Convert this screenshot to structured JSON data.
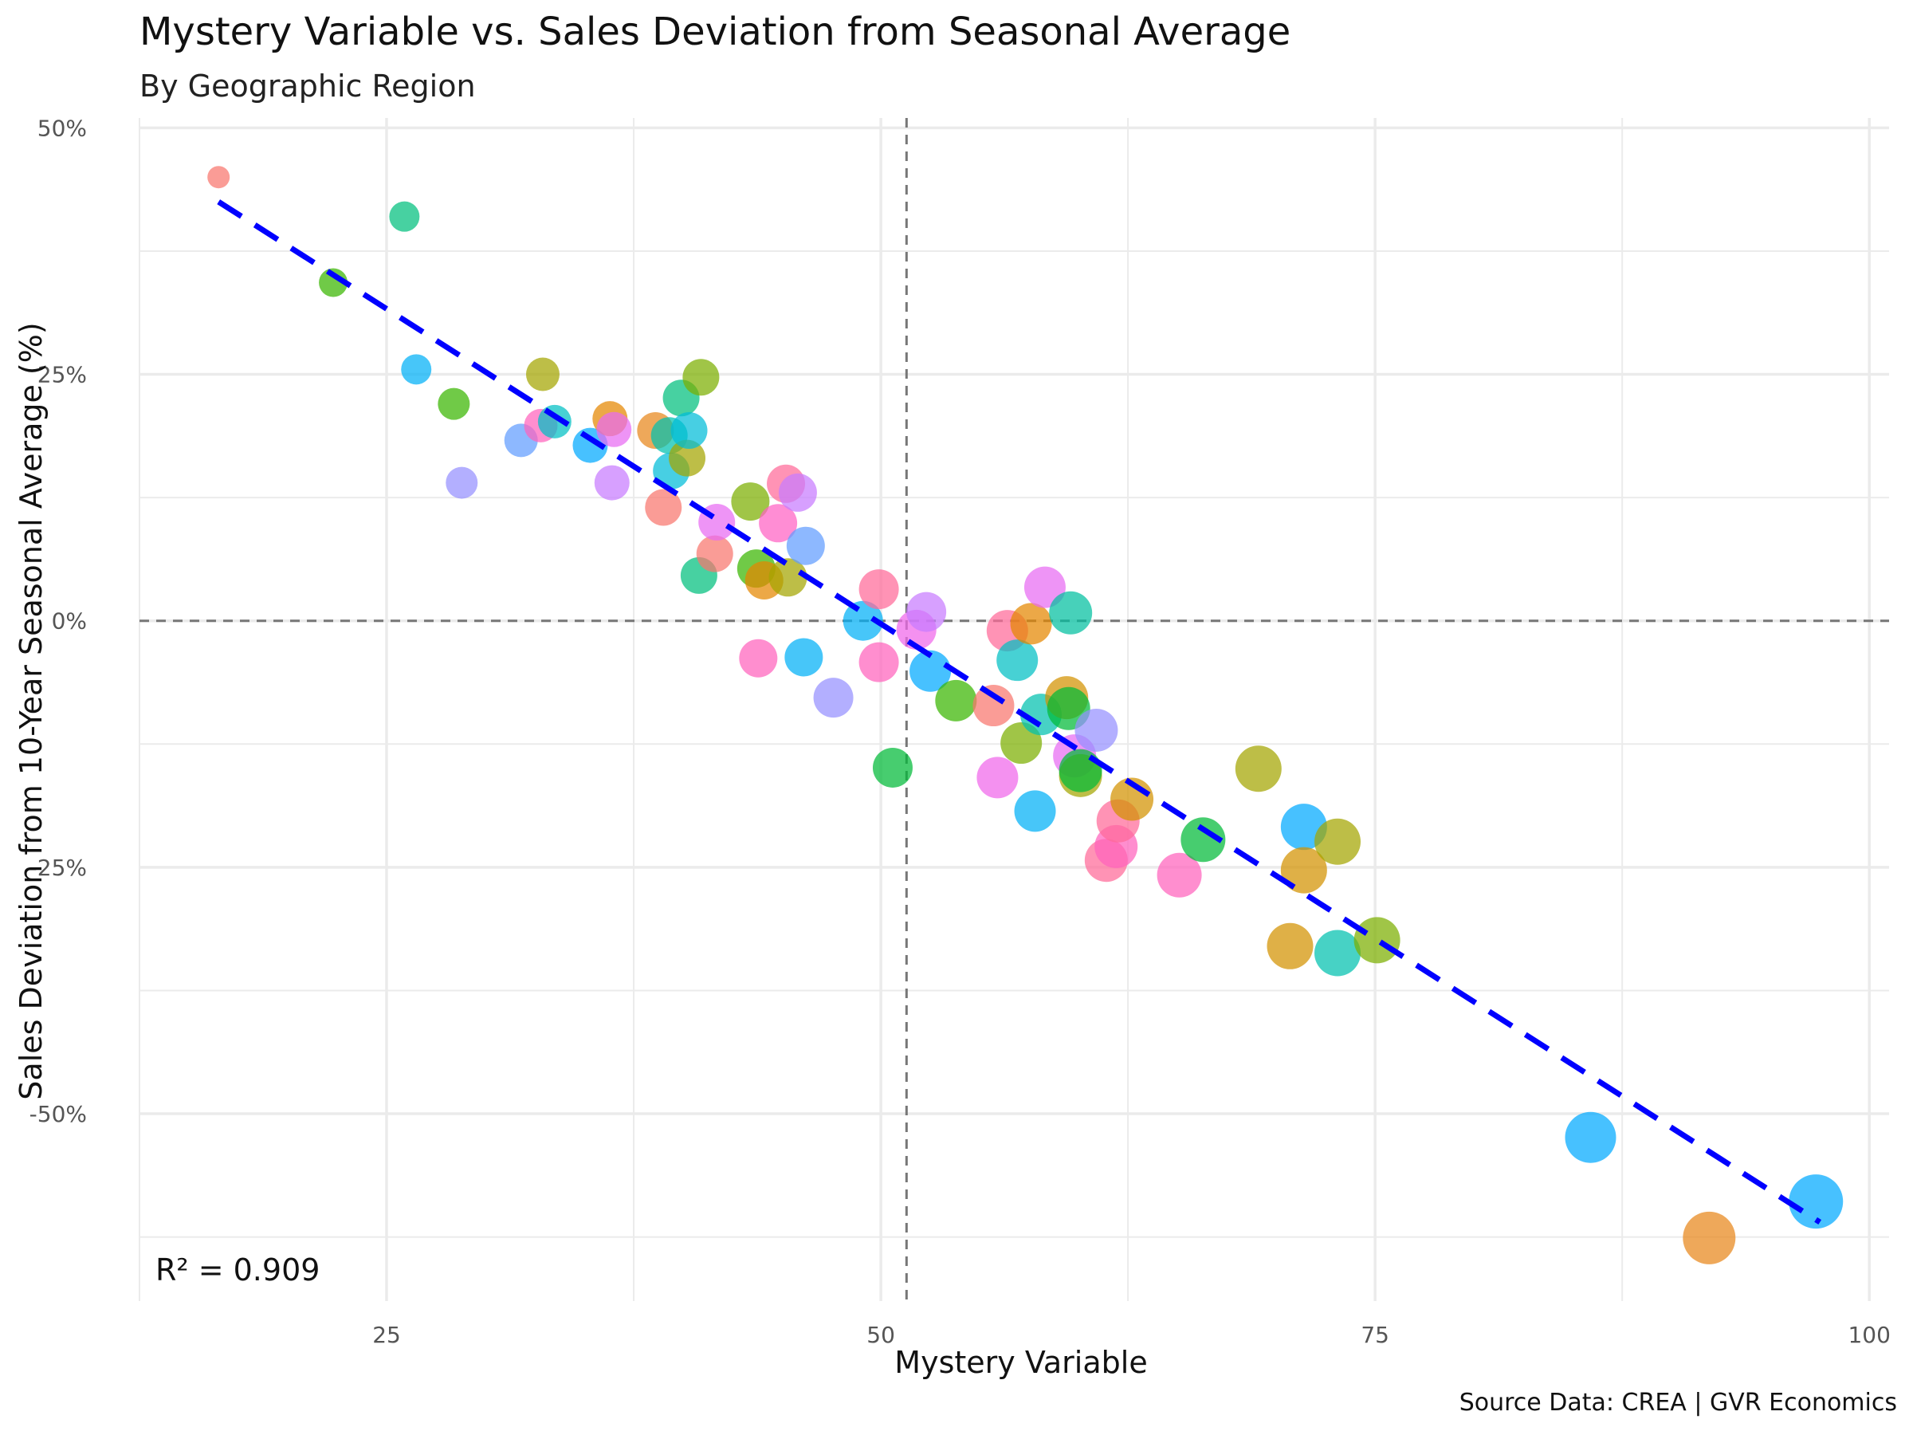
{
  "chart_data": {
    "type": "scatter",
    "title": "Mystery Variable vs. Sales Deviation from Seasonal Average",
    "subtitle": "By Geographic Region",
    "xlabel": "Mystery Variable",
    "ylabel": "Sales Deviation from 10-Year Seasonal Average (%)",
    "caption": "Source Data: CREA | GVR Economics",
    "annotation": "R² = 0.909",
    "xlim": [
      12.5,
      101
    ],
    "ylim": [
      -69,
      51
    ],
    "x_ticks": [
      25,
      50,
      75,
      100
    ],
    "y_ticks": [
      50,
      25,
      0,
      -25,
      -50
    ],
    "y_tick_labels": [
      "50%",
      "25%",
      "0%",
      "-25%",
      "-50%"
    ],
    "reference_lines": {
      "x": 51.3,
      "y": 0
    },
    "trend_line": {
      "x": [
        16.5,
        97.5
      ],
      "y": [
        42.5,
        -61
      ]
    },
    "grid": true,
    "legend": "none",
    "colors": {
      "trend": "#0000ff",
      "reference": "#777777",
      "grid": "#ebebeb"
    },
    "points": [
      {
        "x": 16.5,
        "y": 45,
        "size": 14,
        "color": "#F8766D"
      },
      {
        "x": 22.3,
        "y": 34.3,
        "size": 18,
        "color": "#39B600"
      },
      {
        "x": 25.9,
        "y": 41,
        "size": 19,
        "color": "#00BF7D"
      },
      {
        "x": 26.5,
        "y": 25.5,
        "size": 19,
        "color": "#00B0F6"
      },
      {
        "x": 28.4,
        "y": 22,
        "size": 20,
        "color": "#39B600"
      },
      {
        "x": 28.8,
        "y": 14,
        "size": 20,
        "color": "#9590FF"
      },
      {
        "x": 31.8,
        "y": 18.3,
        "size": 21,
        "color": "#619CFF"
      },
      {
        "x": 32.8,
        "y": 19.8,
        "size": 21,
        "color": "#FF62BC"
      },
      {
        "x": 32.9,
        "y": 25,
        "size": 21,
        "color": "#A3A500"
      },
      {
        "x": 33.5,
        "y": 20.2,
        "size": 21,
        "color": "#00BFC4"
      },
      {
        "x": 35.3,
        "y": 17.8,
        "size": 22,
        "color": "#00A9FF"
      },
      {
        "x": 36.3,
        "y": 20.5,
        "size": 22,
        "color": "#E58700"
      },
      {
        "x": 36.4,
        "y": 14,
        "size": 22,
        "color": "#C77CFF"
      },
      {
        "x": 36.5,
        "y": 19.4,
        "size": 22,
        "color": "#E76BF3"
      },
      {
        "x": 38.6,
        "y": 19.3,
        "size": 23,
        "color": "#E7861B"
      },
      {
        "x": 39.0,
        "y": 11.5,
        "size": 23,
        "color": "#F8766D"
      },
      {
        "x": 39.3,
        "y": 18.8,
        "size": 23,
        "color": "#00C0AF"
      },
      {
        "x": 39.4,
        "y": 15.2,
        "size": 23,
        "color": "#00BCD8"
      },
      {
        "x": 39.9,
        "y": 22.6,
        "size": 23,
        "color": "#00BF7D"
      },
      {
        "x": 40.2,
        "y": 16.5,
        "size": 23,
        "color": "#A3A500"
      },
      {
        "x": 40.3,
        "y": 19.3,
        "size": 23,
        "color": "#00BCD8"
      },
      {
        "x": 40.8,
        "y": 4.6,
        "size": 23,
        "color": "#00BF7D"
      },
      {
        "x": 40.9,
        "y": 24.7,
        "size": 23,
        "color": "#7CAE00"
      },
      {
        "x": 41.6,
        "y": 6.8,
        "size": 23,
        "color": "#F8766D"
      },
      {
        "x": 41.7,
        "y": 10,
        "size": 23,
        "color": "#E76BF3"
      },
      {
        "x": 43.4,
        "y": 12.1,
        "size": 24,
        "color": "#7CAE00"
      },
      {
        "x": 43.8,
        "y": -3.8,
        "size": 24,
        "color": "#FF62BC"
      },
      {
        "x": 43.7,
        "y": 5.3,
        "size": 24,
        "color": "#39B600"
      },
      {
        "x": 44.1,
        "y": 4.1,
        "size": 24,
        "color": "#E58700"
      },
      {
        "x": 44.8,
        "y": 9.9,
        "size": 24,
        "color": "#FF61C3"
      },
      {
        "x": 45.2,
        "y": 13.9,
        "size": 24,
        "color": "#FF6A98"
      },
      {
        "x": 45.3,
        "y": 4.4,
        "size": 24,
        "color": "#A3A500"
      },
      {
        "x": 45.8,
        "y": 13,
        "size": 24,
        "color": "#C77CFF"
      },
      {
        "x": 46.1,
        "y": -3.7,
        "size": 24,
        "color": "#00B0F6"
      },
      {
        "x": 46.2,
        "y": 7.6,
        "size": 24,
        "color": "#619CFF"
      },
      {
        "x": 47.6,
        "y": -7.8,
        "size": 25,
        "color": "#9590FF"
      },
      {
        "x": 49.1,
        "y": 0,
        "size": 25,
        "color": "#00B0F6"
      },
      {
        "x": 49.9,
        "y": 3.2,
        "size": 25,
        "color": "#FF6A98"
      },
      {
        "x": 49.9,
        "y": -4.2,
        "size": 25,
        "color": "#FF62BC"
      },
      {
        "x": 50.6,
        "y": -14.9,
        "size": 25,
        "color": "#00BA38"
      },
      {
        "x": 51.8,
        "y": -0.9,
        "size": 25,
        "color": "#F066EA"
      },
      {
        "x": 52.3,
        "y": 0.9,
        "size": 25,
        "color": "#C77CFF"
      },
      {
        "x": 52.5,
        "y": -5.1,
        "size": 26,
        "color": "#00A9FF"
      },
      {
        "x": 53.8,
        "y": -8.1,
        "size": 26,
        "color": "#39B600"
      },
      {
        "x": 55.7,
        "y": -8.6,
        "size": 26,
        "color": "#F8766D"
      },
      {
        "x": 55.9,
        "y": -15.9,
        "size": 26,
        "color": "#F066EA"
      },
      {
        "x": 56.4,
        "y": -1,
        "size": 26,
        "color": "#FF6A98"
      },
      {
        "x": 56.9,
        "y": -4,
        "size": 26,
        "color": "#00BFC4"
      },
      {
        "x": 57.1,
        "y": -12.4,
        "size": 26,
        "color": "#7CAE00"
      },
      {
        "x": 57.6,
        "y": -0.3,
        "size": 26,
        "color": "#E58700"
      },
      {
        "x": 57.8,
        "y": -19.3,
        "size": 26,
        "color": "#00B0F6"
      },
      {
        "x": 58.1,
        "y": -9.5,
        "size": 26,
        "color": "#00C0AF"
      },
      {
        "x": 58.3,
        "y": 3.4,
        "size": 26,
        "color": "#E76BF3"
      },
      {
        "x": 59.4,
        "y": -7.8,
        "size": 27,
        "color": "#D39200"
      },
      {
        "x": 59.5,
        "y": -8.9,
        "size": 27,
        "color": "#00BA38"
      },
      {
        "x": 59.6,
        "y": 0.8,
        "size": 27,
        "color": "#00BFA0"
      },
      {
        "x": 59.8,
        "y": -13.7,
        "size": 27,
        "color": "#E76BF3"
      },
      {
        "x": 60.1,
        "y": -15.7,
        "size": 27,
        "color": "#A3A500"
      },
      {
        "x": 60.1,
        "y": -15.2,
        "size": 27,
        "color": "#00BA38"
      },
      {
        "x": 60.9,
        "y": -11.1,
        "size": 27,
        "color": "#9590FF"
      },
      {
        "x": 61.4,
        "y": -24.3,
        "size": 27,
        "color": "#FF6A98"
      },
      {
        "x": 61.9,
        "y": -22.9,
        "size": 27,
        "color": "#FF62BC"
      },
      {
        "x": 62.0,
        "y": -20.3,
        "size": 27,
        "color": "#FF6A98"
      },
      {
        "x": 62.7,
        "y": -18.1,
        "size": 27,
        "color": "#D39200"
      },
      {
        "x": 65.1,
        "y": -25.8,
        "size": 28,
        "color": "#FF62BC"
      },
      {
        "x": 66.3,
        "y": -22.2,
        "size": 28,
        "color": "#00BA38"
      },
      {
        "x": 69.1,
        "y": -15,
        "size": 29,
        "color": "#A3A500"
      },
      {
        "x": 70.7,
        "y": -33,
        "size": 29,
        "color": "#D39200"
      },
      {
        "x": 71.4,
        "y": -20.9,
        "size": 29,
        "color": "#00A9FF"
      },
      {
        "x": 71.4,
        "y": -25.3,
        "size": 29,
        "color": "#D39200"
      },
      {
        "x": 73.1,
        "y": -33.7,
        "size": 29,
        "color": "#00C0AF"
      },
      {
        "x": 73.1,
        "y": -22.4,
        "size": 29,
        "color": "#A3A500"
      },
      {
        "x": 75.1,
        "y": -32.4,
        "size": 29,
        "color": "#7CAE00"
      },
      {
        "x": 85.9,
        "y": -52.4,
        "size": 32,
        "color": "#00A9FF"
      },
      {
        "x": 91.9,
        "y": -62.6,
        "size": 33,
        "color": "#E7861B"
      },
      {
        "x": 97.3,
        "y": -58.9,
        "size": 34,
        "color": "#00A9FF"
      }
    ]
  }
}
